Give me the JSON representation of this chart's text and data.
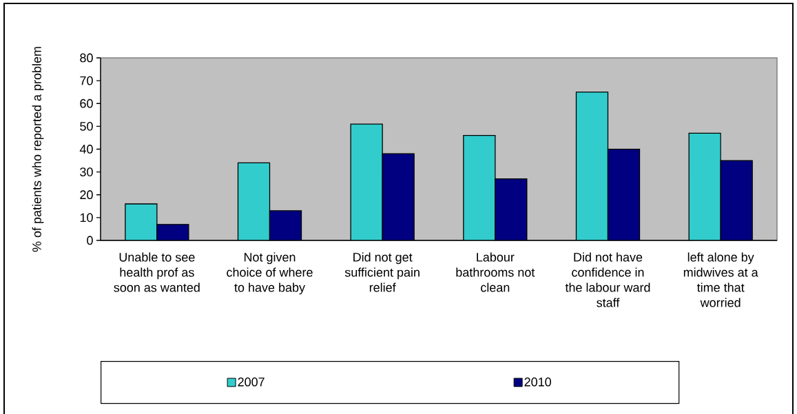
{
  "chart_data": {
    "type": "bar",
    "ylabel": "% of patients who reported a problem",
    "categories": [
      "Unable to see health prof as soon as wanted",
      "Not given choice of where to have baby",
      "Did not get sufficient pain relief",
      "Labour bathrooms not clean",
      "Did not have confidence in the labour ward staff",
      "left alone by midwives at a time that worried"
    ],
    "series": [
      {
        "name": "2007",
        "color": "#33cccc",
        "values": [
          16,
          34,
          51,
          46,
          65,
          47
        ]
      },
      {
        "name": "2010",
        "color": "#000080",
        "values": [
          7,
          13,
          38,
          27,
          40,
          35
        ]
      }
    ],
    "ylim": [
      0,
      80
    ],
    "yticks": [
      0,
      10,
      20,
      30,
      40,
      50,
      60,
      70,
      80
    ],
    "legend": "bottom"
  }
}
